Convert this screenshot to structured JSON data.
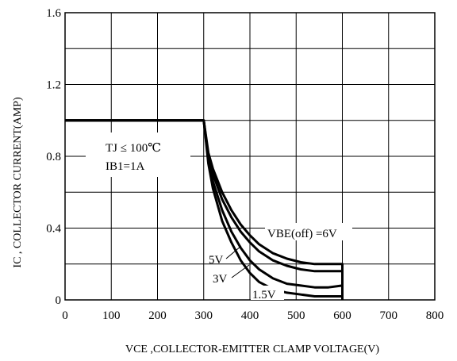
{
  "chart_data": {
    "type": "line",
    "title": "",
    "xlabel": "VCE ,COLLECTOR-EMITTER CLAMP VOLTAGE(V)",
    "ylabel": "IC , COLLECTOR CURRENT(AMP)",
    "xlim": [
      0,
      800
    ],
    "ylim": [
      0,
      1.6
    ],
    "xticks": [
      "0",
      "100",
      "200",
      "300",
      "400",
      "500",
      "600",
      "700",
      "800"
    ],
    "yticks": [
      "0",
      "0.4",
      "0.8",
      "1.2",
      "1.6"
    ],
    "grid": true,
    "annotations": {
      "tj": "TJ ≤ 100℃",
      "ib": "IB1=1A",
      "vbe6": "VBE(off) =6V",
      "vbe5": "5V",
      "vbe3": "3V",
      "vbe15": "1.5V"
    },
    "series": [
      {
        "name": "VBE(off) =6V",
        "x": [
          0,
          300,
          310,
          320,
          340,
          360,
          380,
          400,
          420,
          450,
          480,
          510,
          540,
          570,
          600,
          600
        ],
        "y": [
          1.0,
          1.0,
          0.82,
          0.73,
          0.6,
          0.5,
          0.42,
          0.36,
          0.31,
          0.26,
          0.23,
          0.21,
          0.2,
          0.2,
          0.2,
          0.0
        ]
      },
      {
        "name": "5V",
        "x": [
          0,
          300,
          310,
          320,
          340,
          360,
          380,
          400,
          420,
          450,
          480,
          510,
          540,
          570,
          600,
          600
        ],
        "y": [
          1.0,
          1.0,
          0.8,
          0.7,
          0.56,
          0.46,
          0.38,
          0.32,
          0.27,
          0.22,
          0.19,
          0.17,
          0.16,
          0.16,
          0.16,
          0.0
        ]
      },
      {
        "name": "3V",
        "x": [
          0,
          300,
          310,
          320,
          340,
          360,
          380,
          400,
          420,
          450,
          480,
          510,
          540,
          570,
          600,
          600
        ],
        "y": [
          1.0,
          1.0,
          0.78,
          0.66,
          0.5,
          0.38,
          0.29,
          0.22,
          0.17,
          0.12,
          0.09,
          0.08,
          0.07,
          0.07,
          0.08,
          0.0
        ]
      },
      {
        "name": "1.5V",
        "x": [
          0,
          300,
          310,
          320,
          340,
          360,
          380,
          400,
          420,
          450,
          480,
          510,
          540,
          570,
          600,
          600
        ],
        "y": [
          1.0,
          1.0,
          0.76,
          0.62,
          0.44,
          0.32,
          0.22,
          0.15,
          0.1,
          0.06,
          0.04,
          0.03,
          0.02,
          0.02,
          0.02,
          0.0
        ]
      }
    ]
  }
}
